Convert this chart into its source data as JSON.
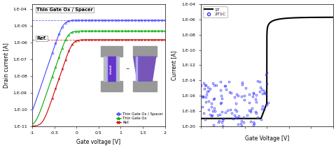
{
  "left_plot": {
    "title": "Thin Gate Ox / Spacer",
    "ref_label": "Ref.",
    "xlabel": "Gate voltage [V]",
    "ylabel": "Drain current [A]",
    "xlim": [
      -1,
      2
    ],
    "ylim": [
      1e-11,
      0.0002
    ],
    "ytick_vals": [
      1e-11,
      1e-10,
      1e-09,
      1e-08,
      1e-07,
      1e-06,
      1e-05,
      0.0001
    ],
    "ytick_labels": [
      "1.E-11",
      "1.E-10",
      "1.E-09",
      "1.E-08",
      "1.E-07",
      "1.E-06",
      "1.E-05",
      "1.E-04"
    ],
    "xticks": [
      -1,
      -0.5,
      0,
      0.5,
      1,
      1.5,
      2
    ],
    "hline_blue": 2.2e-05,
    "hline_red": 1.5e-06,
    "colors": [
      "#4444ff",
      "#00aa00",
      "#cc0000"
    ],
    "vth_blue": -0.3,
    "vth_green": -0.2,
    "vth_red": -0.1,
    "ion_blue": 2.2e-05,
    "ion_green": 5e-06,
    "ion_red": 1.5e-06,
    "ioff": 1e-11,
    "slope": 18,
    "legend": [
      "Thin Gate Ox / Spacer",
      "Thin Gate Ox",
      "Ref."
    ]
  },
  "right_plot": {
    "xlabel": "Gate Voltage [V]",
    "ylabel": "Current [A]",
    "xlim": [
      0,
      3
    ],
    "ylim": [
      1e-20,
      0.0001
    ],
    "ytick_vals": [
      1e-20,
      1e-18,
      1e-16,
      1e-14,
      1e-12,
      1e-10,
      1e-08,
      1e-06,
      0.0001
    ],
    "ytick_labels": [
      "1.E-20",
      "1.E-18",
      "1.E-16",
      "1.E-14",
      "1.E-12",
      "1.E-10",
      "1.E-08",
      "1.E-06",
      "1.E-04"
    ],
    "color_1T": "#000000",
    "color_2T1C": "#3333ff",
    "vth_1T": 1.5,
    "ion_1T": 2e-06,
    "ioff_1T": 1e-17,
    "legend": [
      "1T",
      "2T1C"
    ]
  }
}
